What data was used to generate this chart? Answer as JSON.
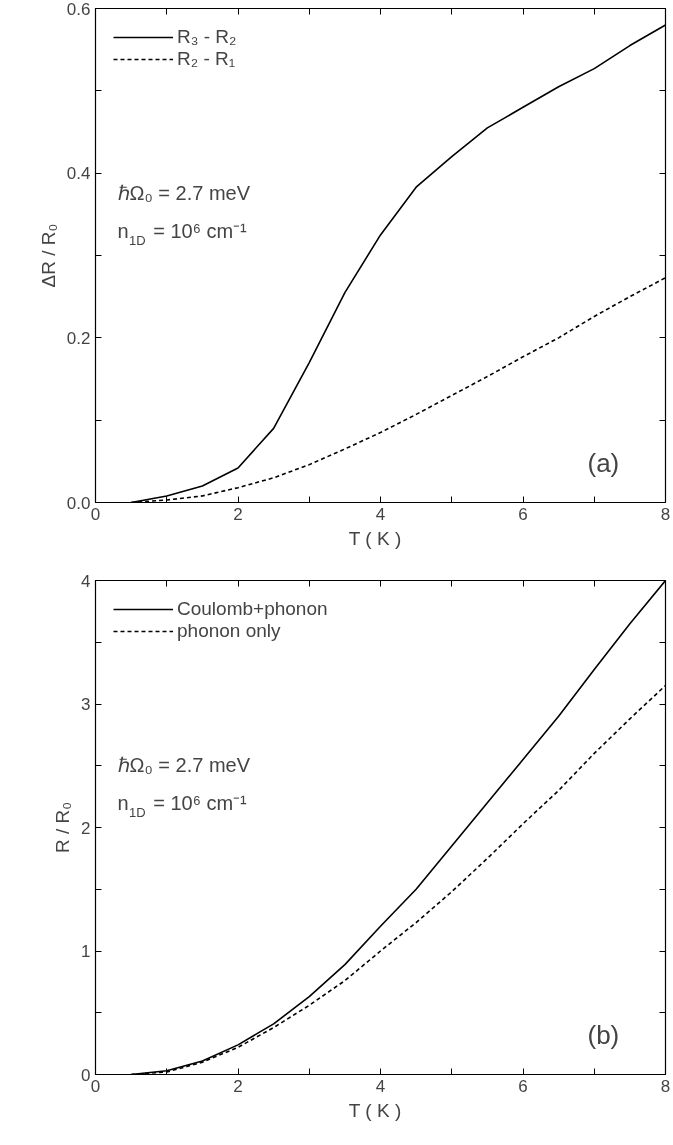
{
  "chart_data": [
    {
      "type": "line",
      "xlabel": "T   ( K )",
      "ylabel": "ΔR / R₀",
      "xlim": [
        0,
        8
      ],
      "ylim": [
        0,
        0.6
      ],
      "xticks": [
        0,
        {
          "value": 1,
          "label": null
        },
        2,
        {
          "value": 3,
          "label": null
        },
        4,
        {
          "value": 5,
          "label": null
        },
        6,
        {
          "value": 7,
          "label": null
        },
        8
      ],
      "yticks": [
        {
          "value": 0,
          "label": "0.0"
        },
        {
          "value": 0.1,
          "label": null
        },
        0.2,
        {
          "value": 0.3,
          "label": null
        },
        0.4,
        {
          "value": 0.5,
          "label": null
        },
        0.6
      ],
      "x": [
        0.5,
        1,
        1.5,
        2,
        2.5,
        3,
        3.5,
        4,
        4.5,
        5,
        5.5,
        6,
        6.5,
        7,
        7.5,
        8
      ],
      "series": [
        {
          "name": "R₃ - R₂",
          "color": "#000000",
          "line_style": "solid",
          "values": [
            0.0,
            0.008,
            0.02,
            0.042,
            0.09,
            0.17,
            0.255,
            0.325,
            0.383,
            0.42,
            0.455,
            0.48,
            0.505,
            0.527,
            0.555,
            0.58
          ]
        },
        {
          "name": "R₂ - R₁",
          "color": "#000000",
          "line_style": "dashed",
          "values": [
            0.0,
            0.003,
            0.008,
            0.018,
            0.03,
            0.046,
            0.065,
            0.085,
            0.107,
            0.13,
            0.153,
            0.177,
            0.2,
            0.226,
            0.25,
            0.273
          ]
        }
      ],
      "annotations": [
        "ℏΩ₀ = 2.7 meV",
        "n$_{1D}$ = 10⁶ cm⁻¹",
        "(a)"
      ],
      "legend": "top left",
      "grid": false
    },
    {
      "type": "line",
      "xlabel": "T   ( K )",
      "ylabel": "R / R₀",
      "xlim": [
        0,
        8
      ],
      "ylim": [
        0,
        4
      ],
      "xticks": [
        0,
        {
          "value": 1,
          "label": null
        },
        2,
        {
          "value": 3,
          "label": null
        },
        4,
        {
          "value": 5,
          "label": null
        },
        6,
        {
          "value": 7,
          "label": null
        },
        8
      ],
      "yticks": [
        0,
        {
          "value": 0.5,
          "label": null
        },
        1,
        {
          "value": 1.5,
          "label": null
        },
        2,
        {
          "value": 2.5,
          "label": null
        },
        3,
        {
          "value": 3.5,
          "label": null
        },
        4
      ],
      "x": [
        0.5,
        1,
        1.5,
        2,
        2.5,
        3,
        3.5,
        4,
        4.5,
        5,
        5.5,
        6,
        6.5,
        7,
        7.5,
        8
      ],
      "series": [
        {
          "name": "Coulomb+phonon",
          "color": "#000000",
          "line_style": "solid",
          "values": [
            0,
            0.03,
            0.11,
            0.24,
            0.41,
            0.63,
            0.89,
            1.2,
            1.5,
            1.85,
            2.2,
            2.55,
            2.9,
            3.28,
            3.65,
            4.0
          ]
        },
        {
          "name": "phonon only",
          "color": "#000000",
          "line_style": "dashed",
          "values": [
            0,
            0.02,
            0.1,
            0.22,
            0.38,
            0.56,
            0.76,
            1.0,
            1.23,
            1.48,
            1.75,
            2.03,
            2.3,
            2.6,
            2.88,
            3.15
          ]
        }
      ],
      "annotations": [
        "ℏΩ₀ = 2.7 meV",
        "n$_{1D}$ = 10⁶ cm⁻¹",
        "(b)"
      ],
      "legend": "top left",
      "grid": false
    }
  ]
}
